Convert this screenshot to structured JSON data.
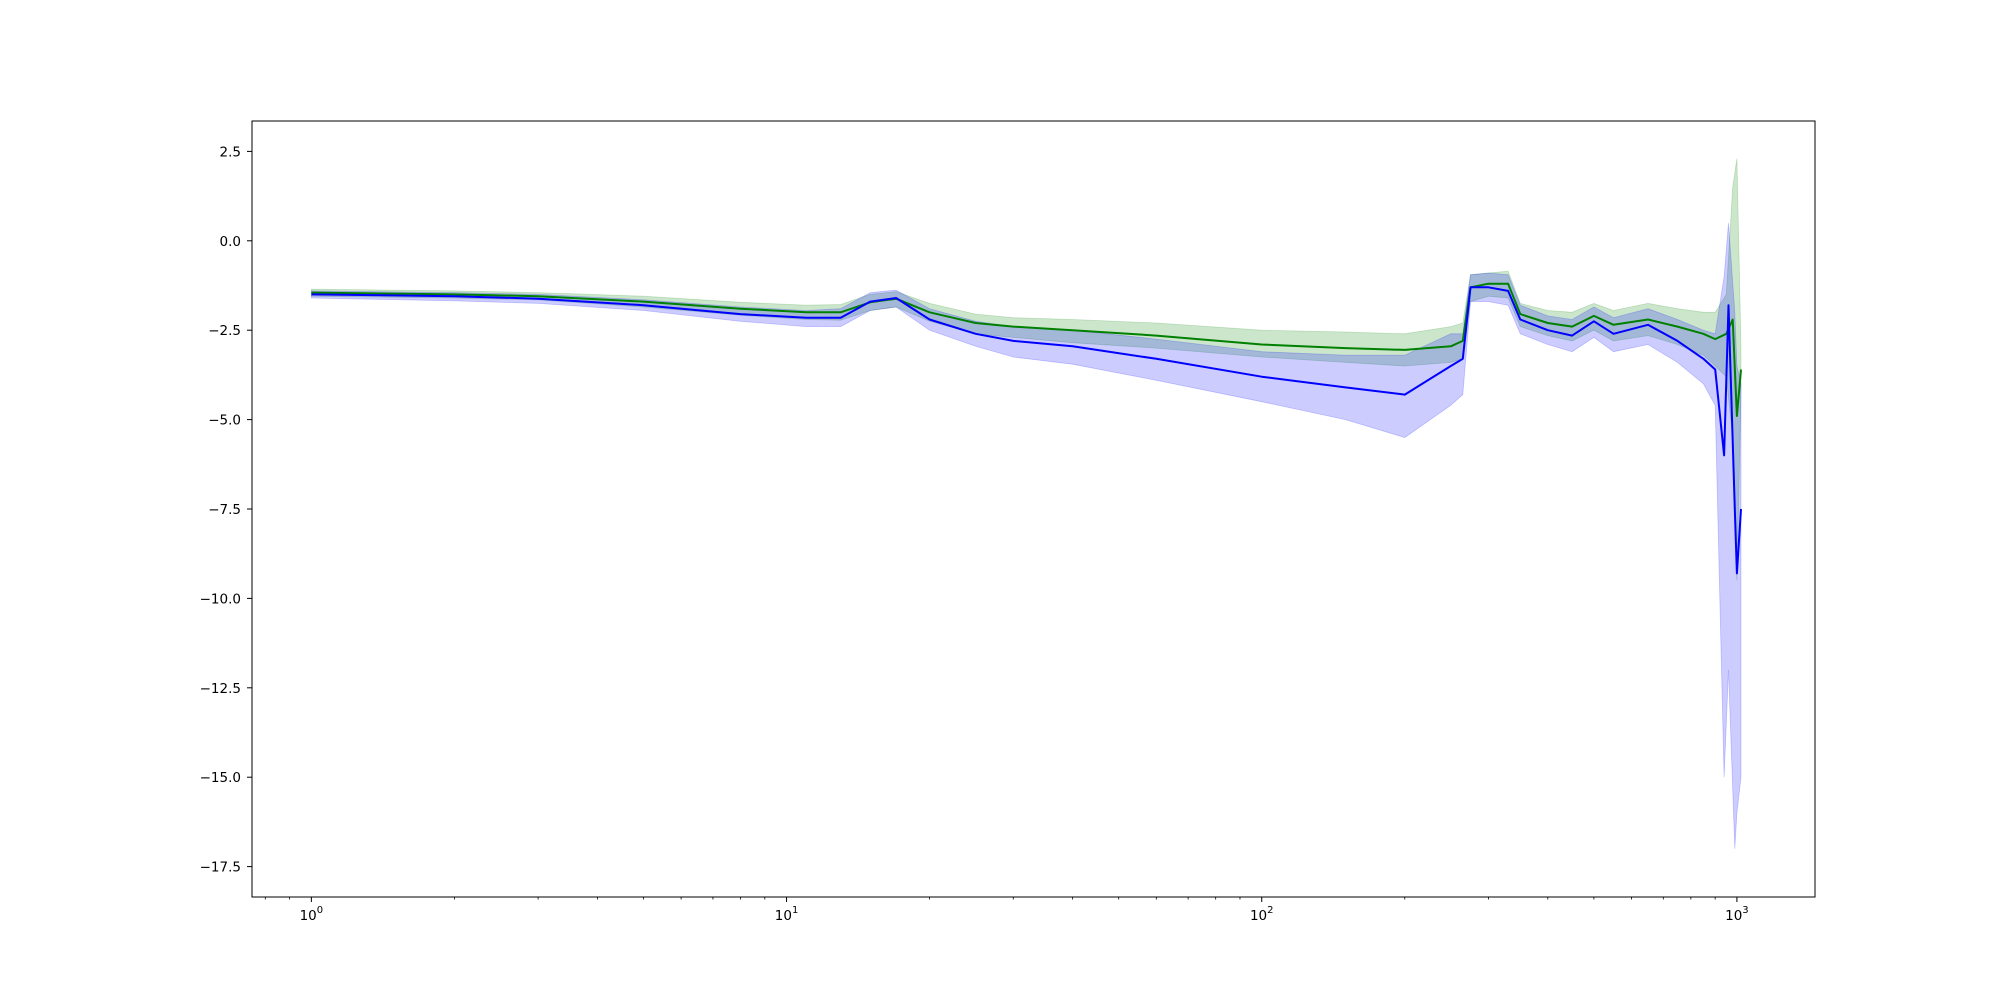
{
  "chart_data": {
    "type": "line",
    "title": "",
    "xlabel": "",
    "ylabel": "",
    "x_scale": "log",
    "xlim": [
      0.75,
      1460
    ],
    "ylim": [
      -18.35,
      3.35
    ],
    "x_ticks": [
      {
        "value": 1,
        "base": "10",
        "exp": "0"
      },
      {
        "value": 10,
        "base": "10",
        "exp": "1"
      },
      {
        "value": 100,
        "base": "10",
        "exp": "2"
      },
      {
        "value": 1000,
        "base": "10",
        "exp": "3"
      }
    ],
    "y_ticks": [
      {
        "value": 2.5,
        "label": "2.5"
      },
      {
        "value": 0,
        "label": "0.0"
      },
      {
        "value": -2.5,
        "label": "−2.5"
      },
      {
        "value": -5,
        "label": "−5.0"
      },
      {
        "value": -7.5,
        "label": "−7.5"
      },
      {
        "value": -10,
        "label": "−10.0"
      },
      {
        "value": -12.5,
        "label": "−12.5"
      },
      {
        "value": -15,
        "label": "−15.0"
      },
      {
        "value": -17.5,
        "label": "−17.5"
      }
    ],
    "grid": false,
    "legend": "none",
    "series": [
      {
        "color": "#008000",
        "band_color": "#008000",
        "band_opacity": 0.2,
        "points": [
          [
            1,
            -1.45,
            -1.35,
            -1.55
          ],
          [
            2,
            -1.5,
            -1.4,
            -1.6
          ],
          [
            3,
            -1.55,
            -1.45,
            -1.65
          ],
          [
            5,
            -1.7,
            -1.55,
            -1.85
          ],
          [
            8,
            -1.9,
            -1.72,
            -2.08
          ],
          [
            11,
            -2.0,
            -1.8,
            -2.2
          ],
          [
            13,
            -2.0,
            -1.78,
            -2.22
          ],
          [
            15,
            -1.72,
            -1.5,
            -1.95
          ],
          [
            17,
            -1.62,
            -1.42,
            -1.85
          ],
          [
            20,
            -2.0,
            -1.75,
            -2.25
          ],
          [
            25,
            -2.3,
            -2.05,
            -2.6
          ],
          [
            30,
            -2.4,
            -2.15,
            -2.7
          ],
          [
            40,
            -2.5,
            -2.2,
            -2.85
          ],
          [
            60,
            -2.65,
            -2.3,
            -3.0
          ],
          [
            100,
            -2.9,
            -2.5,
            -3.25
          ],
          [
            150,
            -3.0,
            -2.55,
            -3.4
          ],
          [
            200,
            -3.05,
            -2.6,
            -3.5
          ],
          [
            250,
            -2.95,
            -2.4,
            -3.4
          ],
          [
            265,
            -2.8,
            -2.3,
            -3.3
          ],
          [
            275,
            -1.3,
            -0.95,
            -1.7
          ],
          [
            300,
            -1.2,
            -0.9,
            -1.55
          ],
          [
            330,
            -1.2,
            -0.85,
            -1.6
          ],
          [
            350,
            -2.05,
            -1.75,
            -2.4
          ],
          [
            400,
            -2.3,
            -1.95,
            -2.65
          ],
          [
            450,
            -2.4,
            -2.0,
            -2.8
          ],
          [
            500,
            -2.1,
            -1.75,
            -2.5
          ],
          [
            550,
            -2.35,
            -1.95,
            -2.8
          ],
          [
            650,
            -2.2,
            -1.75,
            -2.65
          ],
          [
            750,
            -2.4,
            -1.9,
            -2.9
          ],
          [
            850,
            -2.6,
            -2.0,
            -3.2
          ],
          [
            900,
            -2.75,
            -2.0,
            -3.5
          ],
          [
            950,
            -2.6,
            -1.5,
            -3.8
          ],
          [
            980,
            -2.2,
            1.5,
            -5.5
          ],
          [
            1000,
            -4.9,
            2.3,
            -9.5
          ],
          [
            1020,
            -3.6,
            -3.0,
            -4.2
          ]
        ]
      },
      {
        "color": "#0000ff",
        "band_color": "#0000ff",
        "band_opacity": 0.2,
        "points": [
          [
            1,
            -1.5,
            -1.4,
            -1.6
          ],
          [
            2,
            -1.55,
            -1.45,
            -1.68
          ],
          [
            3,
            -1.62,
            -1.5,
            -1.75
          ],
          [
            5,
            -1.8,
            -1.65,
            -1.95
          ],
          [
            8,
            -2.05,
            -1.85,
            -2.25
          ],
          [
            11,
            -2.15,
            -1.95,
            -2.4
          ],
          [
            13,
            -2.15,
            -1.9,
            -2.4
          ],
          [
            15,
            -1.7,
            -1.45,
            -1.95
          ],
          [
            17,
            -1.6,
            -1.38,
            -1.85
          ],
          [
            20,
            -2.2,
            -1.9,
            -2.5
          ],
          [
            25,
            -2.6,
            -2.25,
            -2.95
          ],
          [
            30,
            -2.8,
            -2.4,
            -3.25
          ],
          [
            40,
            -2.95,
            -2.5,
            -3.45
          ],
          [
            60,
            -3.3,
            -2.75,
            -3.9
          ],
          [
            100,
            -3.8,
            -3.1,
            -4.5
          ],
          [
            150,
            -4.1,
            -3.2,
            -5.0
          ],
          [
            200,
            -4.3,
            -3.2,
            -5.5
          ],
          [
            250,
            -3.5,
            -2.6,
            -4.6
          ],
          [
            265,
            -3.3,
            -2.6,
            -4.3
          ],
          [
            275,
            -1.3,
            -0.95,
            -1.7
          ],
          [
            300,
            -1.3,
            -0.9,
            -1.7
          ],
          [
            330,
            -1.4,
            -0.95,
            -1.8
          ],
          [
            350,
            -2.2,
            -1.8,
            -2.6
          ],
          [
            400,
            -2.5,
            -2.1,
            -2.9
          ],
          [
            450,
            -2.65,
            -2.2,
            -3.1
          ],
          [
            500,
            -2.25,
            -1.85,
            -2.7
          ],
          [
            550,
            -2.6,
            -2.15,
            -3.1
          ],
          [
            650,
            -2.35,
            -1.9,
            -2.9
          ],
          [
            750,
            -2.8,
            -2.2,
            -3.4
          ],
          [
            850,
            -3.3,
            -2.5,
            -4.0
          ],
          [
            900,
            -3.6,
            -2.6,
            -4.6
          ],
          [
            940,
            -6.0,
            -1.0,
            -15.0
          ],
          [
            960,
            -1.8,
            0.5,
            -12.0
          ],
          [
            990,
            -7.5,
            -2.0,
            -17.0
          ],
          [
            1000,
            -9.3,
            -3.5,
            -16.0
          ],
          [
            1020,
            -7.5,
            -4.0,
            -15.0
          ]
        ]
      }
    ]
  }
}
